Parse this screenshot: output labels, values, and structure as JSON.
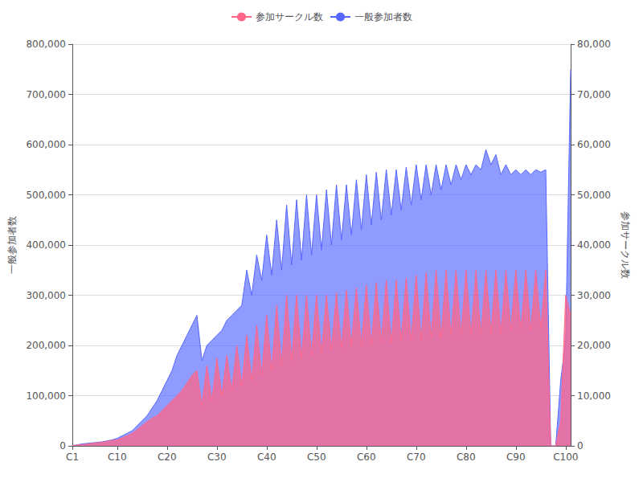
{
  "chart_data": {
    "type": "area",
    "categories": [
      "C1",
      null,
      null,
      null,
      null,
      null,
      null,
      null,
      null,
      "C10",
      null,
      null,
      null,
      null,
      null,
      null,
      null,
      null,
      null,
      "C20",
      null,
      null,
      null,
      null,
      null,
      null,
      null,
      null,
      null,
      "C30",
      null,
      null,
      null,
      null,
      null,
      null,
      null,
      null,
      null,
      "C40",
      null,
      null,
      null,
      null,
      null,
      null,
      null,
      null,
      null,
      "C50",
      null,
      null,
      null,
      null,
      null,
      null,
      null,
      null,
      null,
      "C60",
      null,
      null,
      null,
      null,
      null,
      null,
      null,
      null,
      null,
      "C70",
      null,
      null,
      null,
      null,
      null,
      null,
      null,
      null,
      null,
      "C80",
      null,
      null,
      null,
      null,
      null,
      null,
      null,
      null,
      null,
      "C90",
      null,
      null,
      null,
      null,
      null,
      null,
      null,
      null,
      null,
      "C100",
      null
    ],
    "series": [
      {
        "name": "参加サークル数",
        "color": "#ff6688",
        "axis": "y2",
        "values": [
          32,
          150,
          250,
          350,
          500,
          600,
          700,
          900,
          1100,
          1200,
          1600,
          2000,
          2500,
          3200,
          4000,
          4800,
          5500,
          6000,
          7000,
          8000,
          9000,
          10000,
          11000,
          12500,
          14000,
          15000,
          8000,
          16000,
          9000,
          17500,
          10000,
          18000,
          11000,
          20000,
          12000,
          22000,
          13000,
          24000,
          14000,
          26000,
          15000,
          28000,
          16000,
          30000,
          17000,
          30000,
          17500,
          30000,
          18000,
          30000,
          18500,
          30000,
          19000,
          30500,
          19500,
          31000,
          20000,
          31500,
          20000,
          32000,
          20000,
          32500,
          20500,
          33000,
          20500,
          33000,
          21000,
          33500,
          21000,
          34000,
          21000,
          34500,
          21500,
          35000,
          21500,
          35000,
          22000,
          35000,
          22000,
          35000,
          22000,
          35000,
          22000,
          35000,
          22500,
          35000,
          22500,
          35000,
          23000,
          35000,
          23000,
          35000,
          23000,
          35000,
          23500,
          35000,
          0,
          0,
          5000,
          30000,
          26000
        ]
      },
      {
        "name": "一般参加者数",
        "color": "#5566ff",
        "values": [
          700,
          2000,
          4000,
          5000,
          6000,
          7000,
          8000,
          10000,
          12000,
          15000,
          20000,
          25000,
          30000,
          40000,
          50000,
          60000,
          75000,
          90000,
          110000,
          130000,
          150000,
          180000,
          200000,
          220000,
          240000,
          260000,
          170000,
          200000,
          210000,
          220000,
          230000,
          250000,
          260000,
          270000,
          280000,
          350000,
          300000,
          380000,
          330000,
          420000,
          340000,
          450000,
          350000,
          480000,
          360000,
          490000,
          370000,
          500000,
          380000,
          500000,
          390000,
          510000,
          400000,
          520000,
          410000,
          520000,
          420000,
          530000,
          430000,
          540000,
          440000,
          545000,
          450000,
          550000,
          460000,
          550000,
          470000,
          555000,
          480000,
          560000,
          490000,
          560000,
          500000,
          560000,
          510000,
          560000,
          520000,
          560000,
          530000,
          560000,
          540000,
          560000,
          550000,
          590000,
          560000,
          580000,
          540000,
          560000,
          540000,
          550000,
          540000,
          550000,
          540000,
          550000,
          545000,
          550000,
          0,
          0,
          130000,
          210000,
          750000
        ]
      }
    ],
    "ylabel": "一般参加者数",
    "y2label": "参加サークル数",
    "ylim": [
      0,
      800000
    ],
    "yticks": [
      0,
      {
        "value": 100000,
        "label": "100,000"
      },
      {
        "value": 200000,
        "label": "200,000"
      },
      {
        "value": 300000,
        "label": "300,000"
      },
      {
        "value": 400000,
        "label": "400,000"
      },
      {
        "value": 500000,
        "label": "500,000"
      },
      {
        "value": 600000,
        "label": "600,000"
      },
      {
        "value": 700000,
        "label": "700,000"
      },
      {
        "value": 800000,
        "label": "800,000"
      }
    ],
    "y2lim": [
      0,
      80000
    ],
    "y2ticks": [
      0,
      {
        "value": 10000,
        "label": "10,000"
      },
      {
        "value": 20000,
        "label": "20,000"
      },
      {
        "value": 30000,
        "label": "30,000"
      },
      {
        "value": 40000,
        "label": "40,000"
      },
      {
        "value": 50000,
        "label": "50,000"
      },
      {
        "value": 60000,
        "label": "60,000"
      },
      {
        "value": 70000,
        "label": "70,000"
      },
      {
        "value": 80000,
        "label": "80,000"
      }
    ],
    "grid": true,
    "legend": "top"
  }
}
